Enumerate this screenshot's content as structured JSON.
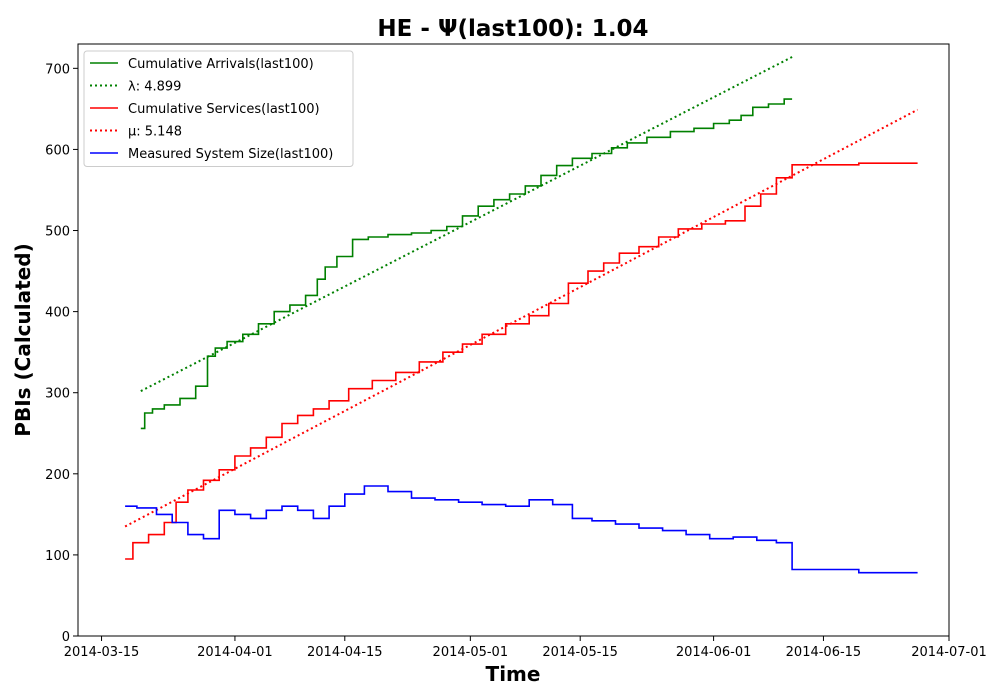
{
  "chart_data": {
    "type": "line",
    "title": "HE -  Ψ(last100): 1.04",
    "xlabel": "Time",
    "ylabel": "PBIs (Calculated)",
    "xlim": [
      "2014-03-12",
      "2014-07-01"
    ],
    "ylim": [
      0,
      730
    ],
    "x_ticks": [
      "2014-03-15",
      "2014-04-01",
      "2014-04-15",
      "2014-05-01",
      "2014-05-15",
      "2014-06-01",
      "2014-06-15",
      "2014-07-01"
    ],
    "y_ticks": [
      0,
      100,
      200,
      300,
      400,
      500,
      600,
      700
    ],
    "grid": false,
    "legend_position": "top-left",
    "series": [
      {
        "name": "Cumulative Arrivals(last100)",
        "color": "#008000",
        "style": "solid",
        "x": [
          "2014-03-20",
          "2014-03-21",
          "2014-03-22",
          "2014-03-24",
          "2014-03-26",
          "2014-03-28",
          "2014-03-29",
          "2014-03-30",
          "2014-04-01",
          "2014-04-03",
          "2014-04-05",
          "2014-04-07",
          "2014-04-09",
          "2014-04-11",
          "2014-04-12",
          "2014-04-13",
          "2014-04-15",
          "2014-04-17",
          "2014-04-19",
          "2014-04-22",
          "2014-04-25",
          "2014-04-27",
          "2014-04-29",
          "2014-05-01",
          "2014-05-03",
          "2014-05-05",
          "2014-05-07",
          "2014-05-09",
          "2014-05-11",
          "2014-05-13",
          "2014-05-15",
          "2014-05-18",
          "2014-05-20",
          "2014-05-22",
          "2014-05-25",
          "2014-05-28",
          "2014-05-31",
          "2014-06-02",
          "2014-06-04",
          "2014-06-05",
          "2014-06-07",
          "2014-06-09",
          "2014-06-11"
        ],
        "y": [
          256,
          275,
          280,
          285,
          293,
          308,
          345,
          355,
          363,
          372,
          385,
          400,
          408,
          420,
          440,
          455,
          468,
          489,
          492,
          495,
          497,
          500,
          505,
          518,
          530,
          538,
          545,
          555,
          568,
          580,
          589,
          595,
          602,
          608,
          615,
          622,
          626,
          632,
          636,
          642,
          652,
          656,
          662
        ]
      },
      {
        "name": "λ: 4.899",
        "color": "#008000",
        "style": "dotted",
        "x": [
          "2014-03-20",
          "2014-06-11"
        ],
        "y": [
          302,
          714
        ]
      },
      {
        "name": "Cumulative Services(last100)",
        "color": "#ff0000",
        "style": "solid",
        "x": [
          "2014-03-18",
          "2014-03-20",
          "2014-03-22",
          "2014-03-24",
          "2014-03-25",
          "2014-03-27",
          "2014-03-29",
          "2014-03-31",
          "2014-04-02",
          "2014-04-04",
          "2014-04-06",
          "2014-04-08",
          "2014-04-10",
          "2014-04-12",
          "2014-04-14",
          "2014-04-17",
          "2014-04-20",
          "2014-04-23",
          "2014-04-26",
          "2014-04-29",
          "2014-05-01",
          "2014-05-04",
          "2014-05-07",
          "2014-05-10",
          "2014-05-12",
          "2014-05-15",
          "2014-05-17",
          "2014-05-19",
          "2014-05-21",
          "2014-05-24",
          "2014-05-26",
          "2014-05-29",
          "2014-06-01",
          "2014-06-04",
          "2014-06-06",
          "2014-06-08",
          "2014-06-10",
          "2014-06-12",
          "2014-06-27"
        ],
        "y": [
          95,
          115,
          125,
          140,
          165,
          180,
          192,
          205,
          222,
          232,
          245,
          262,
          272,
          280,
          290,
          305,
          315,
          325,
          338,
          350,
          360,
          372,
          385,
          395,
          410,
          435,
          450,
          460,
          472,
          480,
          492,
          502,
          508,
          512,
          530,
          545,
          565,
          581,
          583
        ]
      },
      {
        "name": "μ: 5.148",
        "color": "#ff0000",
        "style": "dotted",
        "x": [
          "2014-03-18",
          "2014-06-27"
        ],
        "y": [
          135,
          649
        ]
      },
      {
        "name": "Measured System Size(last100)",
        "color": "#0000ff",
        "style": "solid",
        "x": [
          "2014-03-18",
          "2014-03-21",
          "2014-03-23",
          "2014-03-25",
          "2014-03-27",
          "2014-03-29",
          "2014-03-31",
          "2014-04-02",
          "2014-04-04",
          "2014-04-06",
          "2014-04-08",
          "2014-04-10",
          "2014-04-12",
          "2014-04-14",
          "2014-04-16",
          "2014-04-19",
          "2014-04-22",
          "2014-04-25",
          "2014-04-28",
          "2014-05-01",
          "2014-05-04",
          "2014-05-07",
          "2014-05-10",
          "2014-05-13",
          "2014-05-15",
          "2014-05-18",
          "2014-05-21",
          "2014-05-24",
          "2014-05-27",
          "2014-05-30",
          "2014-06-02",
          "2014-06-05",
          "2014-06-08",
          "2014-06-10",
          "2014-06-12",
          "2014-06-27"
        ],
        "y": [
          160,
          158,
          150,
          140,
          125,
          120,
          155,
          150,
          145,
          155,
          160,
          155,
          145,
          160,
          175,
          185,
          178,
          170,
          168,
          165,
          162,
          160,
          168,
          162,
          145,
          142,
          138,
          133,
          130,
          125,
          120,
          122,
          118,
          115,
          82,
          78
        ]
      }
    ]
  }
}
